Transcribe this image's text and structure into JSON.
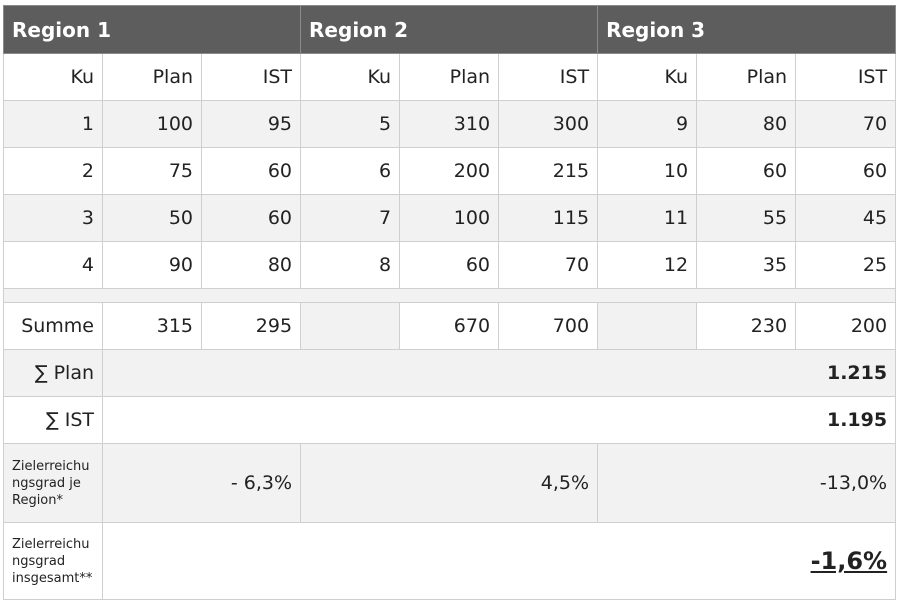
{
  "regions": [
    {
      "title": "Region 1"
    },
    {
      "title": "Region 2"
    },
    {
      "title": "Region 3"
    }
  ],
  "subheaders": [
    "Ku",
    "Plan",
    "IST",
    "Ku",
    "Plan",
    "IST",
    "Ku",
    "Plan",
    "IST"
  ],
  "rows": [
    [
      "1",
      "100",
      "95",
      "5",
      "310",
      "300",
      "9",
      "80",
      "70"
    ],
    [
      "2",
      "75",
      "60",
      "6",
      "200",
      "215",
      "10",
      "60",
      "60"
    ],
    [
      "3",
      "50",
      "60",
      "7",
      "100",
      "115",
      "11",
      "55",
      "45"
    ],
    [
      "4",
      "90",
      "80",
      "8",
      "60",
      "70",
      "12",
      "35",
      "25"
    ]
  ],
  "summe": {
    "label": "Summe",
    "r1_plan": "315",
    "r1_ist": "295",
    "r2_plan": "670",
    "r2_ist": "700",
    "r3_plan": "230",
    "r3_ist": "200"
  },
  "sum_plan": {
    "label": "∑ Plan",
    "value": "1.215"
  },
  "sum_ist": {
    "label": "∑ IST",
    "value": "1.195"
  },
  "rate_region": {
    "label": "Zielerreichu ngsgrad je Region*",
    "r1": "- 6,3%",
    "r2": "4,5%",
    "r3": "-13,0%"
  },
  "rate_overall": {
    "label": "Zielerreichu ngsgrad insgesamt**",
    "value": "-1,6%"
  }
}
